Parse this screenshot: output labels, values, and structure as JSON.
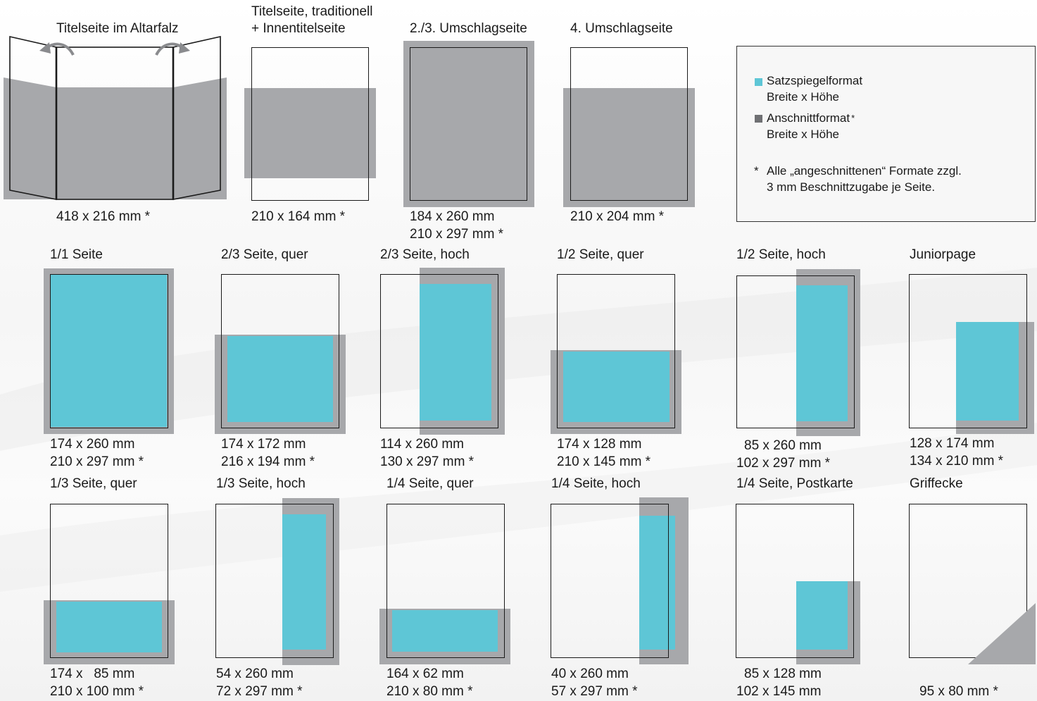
{
  "colors": {
    "satzspiegel": "#5ec6d6",
    "anschnitt": "#a7a8ab",
    "outline": "#1a1a1a"
  },
  "row1": [
    {
      "title": "Titelseite im Altarfalz",
      "dims": [
        "418 x 216 mm *"
      ]
    },
    {
      "title_line1": "Titelseite, traditionell",
      "title_line2": "+ Innentitelseite",
      "dims": [
        "210 x 164 mm *"
      ]
    },
    {
      "title": "2./3. Umschlagseite",
      "dims": [
        "184 x 260 mm",
        "210 x 297 mm *"
      ]
    },
    {
      "title": "4. Umschlagseite",
      "dims": [
        "210 x 204 mm *"
      ]
    }
  ],
  "legend": {
    "item1_label": "Satzspiegelformat",
    "item1_sub": "Breite x Höhe",
    "item2_label": "Anschnittformat",
    "item2_star": "*",
    "item2_sub": "Breite x Höhe",
    "note_star": "*",
    "note_line1": "Alle „angeschnittenen“ Formate zzgl.",
    "note_line2": "3 mm Beschnittzugabe je Seite."
  },
  "row2": [
    {
      "title": "1/1 Seite",
      "dims": [
        "174 x 260 mm",
        "210 x 297 mm *"
      ]
    },
    {
      "title": "2/3 Seite, quer",
      "dims": [
        "174 x 172 mm",
        "216 x 194 mm *"
      ]
    },
    {
      "title": "2/3 Seite, hoch",
      "dims": [
        "114 x 260 mm",
        "130 x 297 mm *"
      ]
    },
    {
      "title": "1/2 Seite, quer",
      "dims": [
        "174 x 128 mm",
        "210 x 145 mm *"
      ]
    },
    {
      "title": "1/2 Seite, hoch",
      "dims": [
        "85 x 260 mm",
        "102 x 297 mm *"
      ]
    },
    {
      "title": "Juniorpage",
      "dims": [
        "128 x 174 mm",
        "134 x 210 mm *"
      ]
    }
  ],
  "row3": [
    {
      "title": "1/3 Seite, quer",
      "dims": [
        "174 x   85 mm",
        "210 x 100 mm *"
      ]
    },
    {
      "title": "1/3 Seite, hoch",
      "dims": [
        "54 x 260 mm",
        "72 x 297 mm *"
      ]
    },
    {
      "title": "1/4 Seite, quer",
      "dims": [
        "164 x 62 mm",
        "210 x 80 mm *"
      ]
    },
    {
      "title": "1/4 Seite, hoch",
      "dims": [
        "40 x 260 mm",
        "57 x 297 mm *"
      ]
    },
    {
      "title": "1/4 Seite, Postkarte",
      "dims": [
        "85 x 128 mm",
        "102 x 145 mm"
      ]
    },
    {
      "title": "Griffecke",
      "dims": [
        "95 x 80 mm *"
      ]
    }
  ]
}
